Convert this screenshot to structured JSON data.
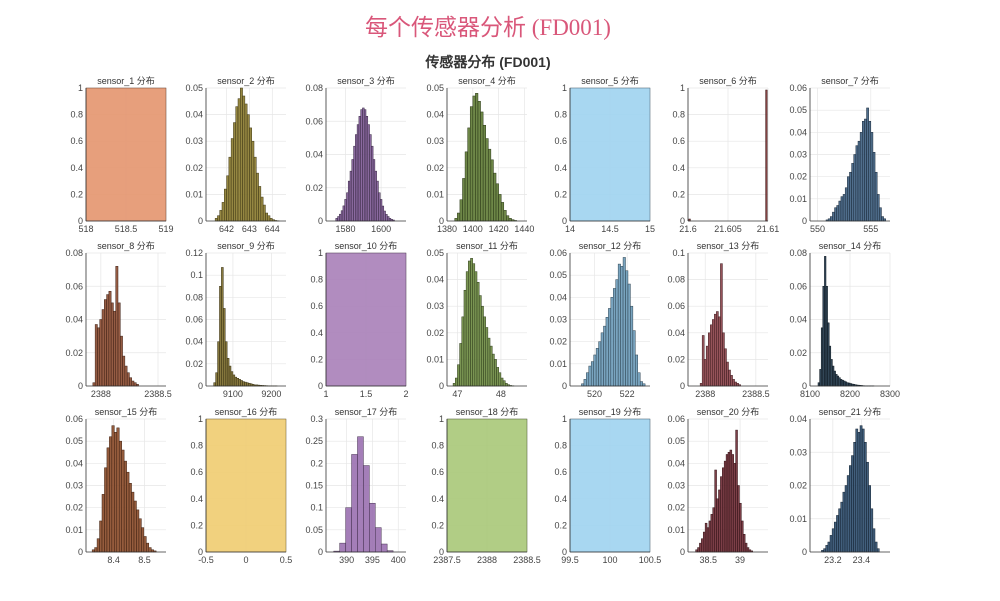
{
  "main_title": "每个传感器分析 (FD001)",
  "figure_title": "传感器分布 (FD001)",
  "chart_data": [
    {
      "type": "bar",
      "title": "sensor_1 分布",
      "color": "#e4956e",
      "xlim": [
        518,
        519
      ],
      "ylim": [
        0,
        1
      ],
      "xticks": [
        518,
        518.5,
        519
      ],
      "xtick_labels": [
        "518",
        "518.5",
        "519"
      ],
      "yticks": [
        0,
        0.2,
        0.4,
        0.6,
        0.8,
        1
      ],
      "bins": {
        "start": 518,
        "width": 1,
        "heights": [
          1
        ]
      }
    },
    {
      "type": "bar",
      "title": "sensor_2 分布",
      "color": "#8a7a2e",
      "xlim": [
        641.1,
        644.6
      ],
      "ylim": [
        0,
        0.05
      ],
      "xticks": [
        642,
        643,
        644
      ],
      "xtick_labels": [
        "642",
        "643",
        "644"
      ],
      "yticks": [
        0,
        0.01,
        0.02,
        0.03,
        0.04,
        0.05
      ],
      "bins": {
        "start": 641.5,
        "width": 0.1,
        "heights": [
          0.001,
          0.002,
          0.004,
          0.007,
          0.012,
          0.017,
          0.024,
          0.031,
          0.037,
          0.043,
          0.046,
          0.05,
          0.047,
          0.044,
          0.04,
          0.035,
          0.03,
          0.024,
          0.018,
          0.013,
          0.009,
          0.006,
          0.003,
          0.002,
          0.001,
          0.0005,
          0.0002,
          0.0001
        ]
      }
    },
    {
      "type": "bar",
      "title": "sensor_3 分布",
      "color": "#7e5a96",
      "xlim": [
        1569,
        1614
      ],
      "ylim": [
        0,
        0.08
      ],
      "xticks": [
        1580,
        1600
      ],
      "xtick_labels": [
        "1580",
        "1600"
      ],
      "yticks": [
        0,
        0.02,
        0.04,
        0.06,
        0.08
      ],
      "bins": {
        "start": 1574.5,
        "width": 1,
        "heights": [
          0.0016,
          0.0027,
          0.0041,
          0.0062,
          0.0091,
          0.013,
          0.017,
          0.024,
          0.03,
          0.037,
          0.045,
          0.052,
          0.058,
          0.063,
          0.067,
          0.068,
          0.067,
          0.063,
          0.058,
          0.052,
          0.045,
          0.037,
          0.03,
          0.024,
          0.017,
          0.013,
          0.009,
          0.006,
          0.004,
          0.0027,
          0.0016,
          0.001,
          0.0006
        ]
      }
    },
    {
      "type": "bar",
      "title": "sensor_4 分布",
      "color": "#5e7a34",
      "xlim": [
        1380,
        1442
      ],
      "ylim": [
        0,
        0.05
      ],
      "xticks": [
        1380,
        1400,
        1420,
        1440
      ],
      "xtick_labels": [
        "1380",
        "1400",
        "1420",
        "1440"
      ],
      "yticks": [
        0,
        0.01,
        0.02,
        0.03,
        0.04,
        0.05
      ],
      "bins": {
        "start": 1386,
        "width": 2,
        "heights": [
          0.001,
          0.003,
          0.008,
          0.016,
          0.026,
          0.035,
          0.043,
          0.047,
          0.048,
          0.045,
          0.041,
          0.036,
          0.031,
          0.027,
          0.023,
          0.018,
          0.014,
          0.01,
          0.007,
          0.004,
          0.002,
          0.001,
          0.0005,
          0.0002
        ]
      }
    },
    {
      "type": "bar",
      "title": "sensor_5 分布",
      "color": "#9fd3f0",
      "xlim": [
        14,
        15
      ],
      "ylim": [
        0,
        1
      ],
      "xticks": [
        14,
        14.5,
        15
      ],
      "xtick_labels": [
        "14",
        "14.5",
        "15"
      ],
      "yticks": [
        0,
        0.2,
        0.4,
        0.6,
        0.8,
        1
      ],
      "bins": {
        "start": 14,
        "width": 1,
        "heights": [
          1
        ]
      }
    },
    {
      "type": "bar",
      "title": "sensor_6 分布",
      "color": "#7a3030",
      "xlim": [
        21.6,
        21.61
      ],
      "ylim": [
        0,
        1
      ],
      "xticks": [
        21.6,
        21.605,
        21.61
      ],
      "xtick_labels": [
        "21.6",
        "21.605",
        "21.61"
      ],
      "yticks": [
        0,
        0.2,
        0.4,
        0.6,
        0.8,
        1
      ],
      "bins": {
        "points": [
          [
            21.6002,
            0.015
          ],
          [
            21.6098,
            0.985
          ]
        ],
        "width": 0.0002
      }
    },
    {
      "type": "bar",
      "title": "sensor_7 分布",
      "color": "#3d5e80",
      "xlim": [
        549.3,
        556.8
      ],
      "ylim": [
        0,
        0.06
      ],
      "xticks": [
        550,
        555
      ],
      "xtick_labels": [
        "550",
        "555"
      ],
      "yticks": [
        0,
        0.01,
        0.02,
        0.03,
        0.04,
        0.05,
        0.06
      ],
      "bins": {
        "start": 550.8,
        "width": 0.2,
        "heights": [
          0.0005,
          0.001,
          0.002,
          0.004,
          0.006,
          0.007,
          0.009,
          0.011,
          0.012,
          0.015,
          0.02,
          0.022,
          0.026,
          0.03,
          0.034,
          0.036,
          0.04,
          0.045,
          0.046,
          0.051,
          0.045,
          0.04,
          0.031,
          0.022,
          0.012,
          0.006,
          0.002,
          0.001
        ]
      }
    },
    {
      "type": "bar",
      "title": "sensor_8 分布",
      "color": "#8a4a30",
      "xlim": [
        2387.87,
        2388.57
      ],
      "ylim": [
        0,
        0.08
      ],
      "xticks": [
        2388,
        2388.5
      ],
      "xtick_labels": [
        "2388",
        "2388.5"
      ],
      "yticks": [
        0,
        0.02,
        0.04,
        0.06,
        0.08
      ],
      "bins": {
        "start": 2387.93,
        "width": 0.02,
        "heights": [
          0.002,
          0.037,
          0.035,
          0.04,
          0.046,
          0.052,
          0.055,
          0.057,
          0.05,
          0.045,
          0.072,
          0.05,
          0.03,
          0.018,
          0.012,
          0.008,
          0.005,
          0.003,
          0.002,
          0.001
        ]
      }
    },
    {
      "type": "bar",
      "title": "sensor_9 分布",
      "color": "#7a6a2a",
      "xlim": [
        9030,
        9238
      ],
      "ylim": [
        0,
        0.12
      ],
      "xticks": [
        9100,
        9200
      ],
      "xtick_labels": [
        "9100",
        "9200"
      ],
      "yticks": [
        0,
        0.02,
        0.04,
        0.06,
        0.08,
        0.1,
        0.12
      ],
      "bins": {
        "start": 9050,
        "width": 5,
        "heights": [
          0.003,
          0.012,
          0.04,
          0.09,
          0.107,
          0.07,
          0.04,
          0.025,
          0.018,
          0.013,
          0.01,
          0.008,
          0.007,
          0.006,
          0.005,
          0.004,
          0.0035,
          0.003,
          0.0025,
          0.002,
          0.0015,
          0.001,
          0.001,
          0.0008,
          0.0006,
          0.0005,
          0.0004,
          0.0003,
          0.0002,
          0.0001,
          0.0001,
          0.0001,
          0.0001
        ]
      }
    },
    {
      "type": "bar",
      "title": "sensor_10 分布",
      "color": "#a880b8",
      "xlim": [
        1,
        2
      ],
      "ylim": [
        0,
        1
      ],
      "xticks": [
        1,
        1.5,
        2
      ],
      "xtick_labels": [
        "1",
        "1.5",
        "2"
      ],
      "yticks": [
        0,
        0.2,
        0.4,
        0.6,
        0.8,
        1
      ],
      "bins": {
        "start": 1,
        "width": 1,
        "heights": [
          1
        ]
      }
    },
    {
      "type": "bar",
      "title": "sensor_11 分布",
      "color": "#6b8a40",
      "xlim": [
        46.76,
        48.6
      ],
      "ylim": [
        0,
        0.05
      ],
      "xticks": [
        47,
        48
      ],
      "xtick_labels": [
        "47",
        "48"
      ],
      "yticks": [
        0,
        0.01,
        0.02,
        0.03,
        0.04,
        0.05
      ],
      "bins": {
        "start": 46.9,
        "width": 0.05,
        "heights": [
          0.001,
          0.003,
          0.008,
          0.016,
          0.026,
          0.036,
          0.043,
          0.047,
          0.048,
          0.046,
          0.043,
          0.039,
          0.034,
          0.03,
          0.026,
          0.022,
          0.018,
          0.015,
          0.012,
          0.01,
          0.007,
          0.005,
          0.003,
          0.002,
          0.001,
          0.0005,
          0.0002,
          0.0001
        ]
      }
    },
    {
      "type": "bar",
      "title": "sensor_12 分布",
      "color": "#6a9ab8",
      "xlim": [
        518.5,
        523.4
      ],
      "ylim": [
        0,
        0.06
      ],
      "xticks": [
        520,
        522
      ],
      "xtick_labels": [
        "520",
        "522"
      ],
      "yticks": [
        0,
        0.01,
        0.02,
        0.03,
        0.04,
        0.05,
        0.06
      ],
      "bins": {
        "start": 519.2,
        "width": 0.15,
        "heights": [
          0.001,
          0.003,
          0.006,
          0.009,
          0.011,
          0.014,
          0.017,
          0.02,
          0.024,
          0.027,
          0.031,
          0.035,
          0.04,
          0.044,
          0.048,
          0.055,
          0.054,
          0.058,
          0.052,
          0.046,
          0.036,
          0.025,
          0.014,
          0.006,
          0.002,
          0.001
        ]
      }
    },
    {
      "type": "bar",
      "title": "sensor_13 分布",
      "color": "#8a4048",
      "xlim": [
        2387.83,
        2388.62
      ],
      "ylim": [
        0,
        0.1
      ],
      "xticks": [
        2388,
        2388.5
      ],
      "xtick_labels": [
        "2388",
        "2388.5"
      ],
      "yticks": [
        0,
        0.02,
        0.04,
        0.06,
        0.08,
        0.1
      ],
      "bins": {
        "start": 2387.95,
        "width": 0.02,
        "heights": [
          0.002,
          0.038,
          0.02,
          0.03,
          0.04,
          0.046,
          0.05,
          0.054,
          0.056,
          0.052,
          0.092,
          0.04,
          0.028,
          0.018,
          0.012,
          0.008,
          0.005,
          0.003,
          0.002,
          0.001
        ]
      }
    },
    {
      "type": "bar",
      "title": "sensor_14 分布",
      "color": "#1f3548",
      "xlim": [
        8100,
        8300
      ],
      "ylim": [
        0,
        0.08
      ],
      "xticks": [
        8100,
        8200,
        8300
      ],
      "xtick_labels": [
        "8100",
        "8200",
        "8300"
      ],
      "yticks": [
        0,
        0.02,
        0.04,
        0.06,
        0.08
      ],
      "bins": {
        "start": 8120,
        "width": 4,
        "heights": [
          0.002,
          0.01,
          0.035,
          0.06,
          0.078,
          0.06,
          0.038,
          0.024,
          0.016,
          0.012,
          0.009,
          0.007,
          0.006,
          0.005,
          0.004,
          0.0035,
          0.003,
          0.0025,
          0.002,
          0.0018,
          0.0015,
          0.0012,
          0.001,
          0.0008,
          0.0006,
          0.0005,
          0.0004,
          0.0003,
          0.0002,
          0.0001,
          0.0001,
          0.0001,
          0.0001,
          0.0001,
          0.0001
        ]
      }
    },
    {
      "type": "bar",
      "title": "sensor_15 分布",
      "color": "#8a4a28",
      "xlim": [
        8.31,
        8.57
      ],
      "ylim": [
        0,
        0.06
      ],
      "xticks": [
        8.4,
        8.5
      ],
      "xtick_labels": [
        "8.4",
        "8.5"
      ],
      "yticks": [
        0,
        0.01,
        0.02,
        0.03,
        0.04,
        0.05,
        0.06
      ],
      "bins": {
        "start": 8.33,
        "width": 0.008,
        "heights": [
          0.001,
          0.002,
          0.006,
          0.014,
          0.026,
          0.038,
          0.047,
          0.052,
          0.057,
          0.054,
          0.056,
          0.05,
          0.046,
          0.041,
          0.036,
          0.031,
          0.027,
          0.023,
          0.019,
          0.015,
          0.011,
          0.007,
          0.004,
          0.002,
          0.001,
          0.0005
        ]
      }
    },
    {
      "type": "bar",
      "title": "sensor_16 分布",
      "color": "#f0cc70",
      "xlim": [
        -0.5,
        0.5
      ],
      "ylim": [
        0,
        1
      ],
      "xticks": [
        -0.5,
        0,
        0.5
      ],
      "xtick_labels": [
        "-0.5",
        "0",
        "0.5"
      ],
      "yticks": [
        0,
        0.2,
        0.4,
        0.6,
        0.8,
        1
      ],
      "bins": {
        "start": -0.5,
        "width": 1,
        "heights": [
          1
        ]
      }
    },
    {
      "type": "bar",
      "title": "sensor_17 分布",
      "color": "#9a70b0",
      "xlim": [
        386,
        401.5
      ],
      "ylim": [
        0,
        0.3
      ],
      "xticks": [
        390,
        395,
        400
      ],
      "xtick_labels": [
        "390",
        "395",
        "400"
      ],
      "yticks": [
        0,
        0.05,
        0.1,
        0.15,
        0.2,
        0.25,
        0.3
      ],
      "bins": {
        "start": 387.5,
        "width": 1.15,
        "heights": [
          0.002,
          0.02,
          0.1,
          0.22,
          0.26,
          0.195,
          0.11,
          0.055,
          0.018,
          0.003
        ]
      }
    },
    {
      "type": "bar",
      "title": "sensor_18 分布",
      "color": "#a8c878",
      "xlim": [
        2387.5,
        2388.5
      ],
      "ylim": [
        0,
        1
      ],
      "xticks": [
        2387.5,
        2388,
        2388.5
      ],
      "xtick_labels": [
        "2387.5",
        "2388",
        "2388.5"
      ],
      "yticks": [
        0,
        0.2,
        0.4,
        0.6,
        0.8,
        1
      ],
      "bins": {
        "start": 2387.5,
        "width": 1,
        "heights": [
          1
        ]
      }
    },
    {
      "type": "bar",
      "title": "sensor_19 分布",
      "color": "#9fd3f0",
      "xlim": [
        99.5,
        100.5
      ],
      "ylim": [
        0,
        1
      ],
      "xticks": [
        99.5,
        100,
        100.5
      ],
      "xtick_labels": [
        "99.5",
        "100",
        "100.5"
      ],
      "yticks": [
        0,
        0.2,
        0.4,
        0.6,
        0.8,
        1
      ],
      "bins": {
        "start": 99.5,
        "width": 1,
        "heights": [
          1
        ]
      }
    },
    {
      "type": "bar",
      "title": "sensor_20 分布",
      "color": "#6e2a34",
      "xlim": [
        38.18,
        39.44
      ],
      "ylim": [
        0,
        0.06
      ],
      "xticks": [
        38.5,
        39
      ],
      "xtick_labels": [
        "38.5",
        "39"
      ],
      "yticks": [
        0,
        0.01,
        0.02,
        0.03,
        0.04,
        0.05,
        0.06
      ],
      "bins": {
        "start": 38.3,
        "width": 0.03,
        "heights": [
          0.001,
          0.002,
          0.004,
          0.006,
          0.009,
          0.013,
          0.011,
          0.014,
          0.017,
          0.02,
          0.037,
          0.024,
          0.028,
          0.034,
          0.038,
          0.041,
          0.044,
          0.045,
          0.046,
          0.044,
          0.04,
          0.055,
          0.03,
          0.022,
          0.014,
          0.008,
          0.004,
          0.002,
          0.001,
          0.0005
        ]
      }
    },
    {
      "type": "bar",
      "title": "sensor_21 分布",
      "color": "#2e4e6e",
      "xlim": [
        23.04,
        23.6
      ],
      "ylim": [
        0,
        0.04
      ],
      "xticks": [
        23.2,
        23.4
      ],
      "xtick_labels": [
        "23.2",
        "23.4"
      ],
      "yticks": [
        0,
        0.01,
        0.02,
        0.03,
        0.04
      ],
      "bins": {
        "start": 23.12,
        "width": 0.015,
        "heights": [
          0.0005,
          0.001,
          0.002,
          0.003,
          0.005,
          0.007,
          0.009,
          0.011,
          0.013,
          0.015,
          0.018,
          0.02,
          0.023,
          0.026,
          0.029,
          0.033,
          0.037,
          0.036,
          0.038,
          0.037,
          0.033,
          0.027,
          0.02,
          0.013,
          0.007,
          0.003,
          0.001
        ]
      }
    }
  ]
}
